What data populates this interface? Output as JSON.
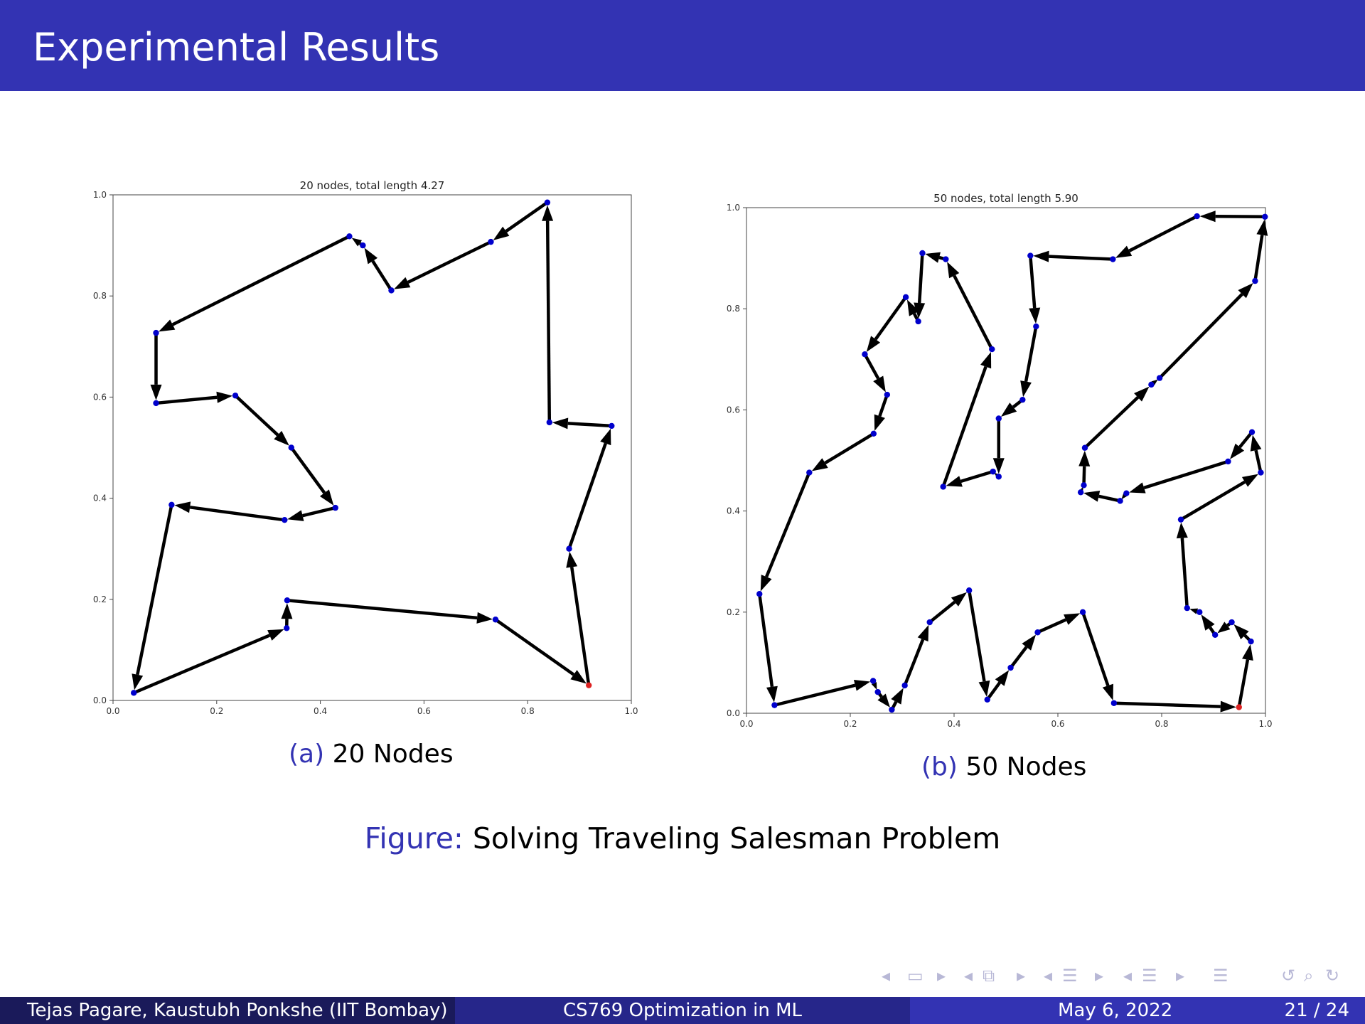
{
  "header": {
    "title": "Experimental Results"
  },
  "chart_data": [
    {
      "type": "scatter",
      "title": "20 nodes, total length 4.27",
      "xlim": [
        0,
        1
      ],
      "ylim": [
        0,
        1
      ],
      "xticks": [
        "0.0",
        "0.2",
        "0.4",
        "0.6",
        "0.8",
        "1.0"
      ],
      "yticks": [
        "0.0",
        "0.2",
        "0.4",
        "0.6",
        "0.8",
        "1.0"
      ],
      "grid": false,
      "node_color": "#0000cc",
      "start_color": "#dd2222",
      "path_color": "#000000",
      "start": [
        0.918,
        0.03
      ],
      "path": [
        [
          0.918,
          0.03
        ],
        [
          0.88,
          0.3
        ],
        [
          0.962,
          0.543
        ],
        [
          0.842,
          0.55
        ],
        [
          0.838,
          0.985
        ],
        [
          0.729,
          0.907
        ],
        [
          0.537,
          0.811
        ],
        [
          0.482,
          0.9
        ],
        [
          0.456,
          0.918
        ],
        [
          0.083,
          0.727
        ],
        [
          0.083,
          0.588
        ],
        [
          0.236,
          0.603
        ],
        [
          0.344,
          0.5
        ],
        [
          0.429,
          0.381
        ],
        [
          0.331,
          0.357
        ],
        [
          0.113,
          0.387
        ],
        [
          0.04,
          0.015
        ],
        [
          0.335,
          0.143
        ],
        [
          0.336,
          0.198
        ],
        [
          0.738,
          0.16
        ],
        [
          0.918,
          0.03
        ]
      ]
    },
    {
      "type": "scatter",
      "title": "50 nodes, total length 5.90",
      "xlim": [
        0,
        1
      ],
      "ylim": [
        0,
        1
      ],
      "xticks": [
        "0.0",
        "0.2",
        "0.4",
        "0.6",
        "0.8",
        "1.0"
      ],
      "yticks": [
        "0.0",
        "0.2",
        "0.4",
        "0.6",
        "0.8",
        "1.0"
      ],
      "grid": false,
      "node_color": "#0000cc",
      "start_color": "#dd2222",
      "path_color": "#000000",
      "start": [
        0.949,
        0.012
      ],
      "path": [
        [
          0.949,
          0.012
        ],
        [
          0.972,
          0.142
        ],
        [
          0.935,
          0.18
        ],
        [
          0.903,
          0.155
        ],
        [
          0.873,
          0.2
        ],
        [
          0.849,
          0.208
        ],
        [
          0.837,
          0.383
        ],
        [
          0.991,
          0.476
        ],
        [
          0.974,
          0.556
        ],
        [
          0.928,
          0.498
        ],
        [
          0.732,
          0.435
        ],
        [
          0.72,
          0.42
        ],
        [
          0.644,
          0.437
        ],
        [
          0.65,
          0.451
        ],
        [
          0.652,
          0.525
        ],
        [
          0.78,
          0.65
        ],
        [
          0.796,
          0.663
        ],
        [
          0.98,
          0.855
        ],
        [
          0.999,
          0.982
        ],
        [
          0.868,
          0.983
        ],
        [
          0.706,
          0.898
        ],
        [
          0.547,
          0.905
        ],
        [
          0.558,
          0.765
        ],
        [
          0.532,
          0.62
        ],
        [
          0.486,
          0.583
        ],
        [
          0.486,
          0.468
        ],
        [
          0.475,
          0.478
        ],
        [
          0.379,
          0.448
        ],
        [
          0.473,
          0.72
        ],
        [
          0.384,
          0.898
        ],
        [
          0.339,
          0.91
        ],
        [
          0.331,
          0.775
        ],
        [
          0.307,
          0.823
        ],
        [
          0.228,
          0.71
        ],
        [
          0.271,
          0.63
        ],
        [
          0.245,
          0.553
        ],
        [
          0.121,
          0.476
        ],
        [
          0.025,
          0.236
        ],
        [
          0.054,
          0.016
        ],
        [
          0.244,
          0.064
        ],
        [
          0.253,
          0.042
        ],
        [
          0.28,
          0.007
        ],
        [
          0.305,
          0.055
        ],
        [
          0.353,
          0.18
        ],
        [
          0.429,
          0.243
        ],
        [
          0.464,
          0.027
        ],
        [
          0.509,
          0.09
        ],
        [
          0.561,
          0.16
        ],
        [
          0.648,
          0.2
        ],
        [
          0.708,
          0.02
        ],
        [
          0.949,
          0.012
        ]
      ]
    }
  ],
  "captions": {
    "a_label": "(a)",
    "a_text": "20 Nodes",
    "b_label": "(b)",
    "b_text": "50 Nodes",
    "figure_label": "Figure:",
    "figure_text": "Solving Traveling Salesman Problem"
  },
  "nav_icons": [
    "nav-left-arrow",
    "frame-icon",
    "nav-right-arrow",
    "nav-left-arrow",
    "subsection-icon",
    "nav-right-arrow",
    "nav-left-arrow",
    "section-icon",
    "nav-right-arrow",
    "nav-left-arrow",
    "slide-icon",
    "nav-right-arrow",
    "toc-icon",
    "undo-icon",
    "search-icon",
    "redo-icon"
  ],
  "footer": {
    "authors": "Tejas Pagare, Kaustubh Ponkshe  (IIT Bombay)",
    "course": "CS769 Optimization in ML",
    "date": "May 6, 2022",
    "page": "21 / 24"
  }
}
